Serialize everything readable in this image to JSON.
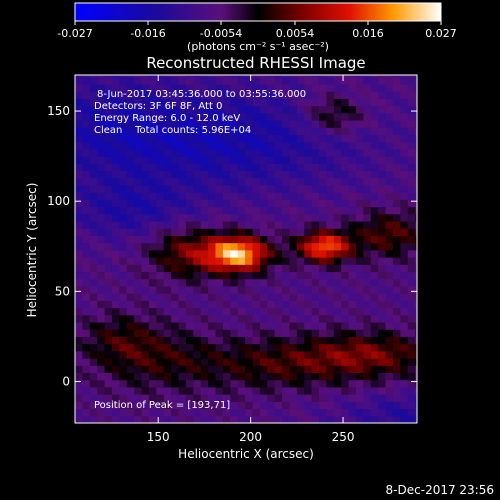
{
  "chart_data": {
    "type": "heatmap",
    "title": "Reconstructed RHESSI Image",
    "xlabel": "Heliocentric X (arcsec)",
    "ylabel": "Heliocentric Y (arcsec)",
    "xlim": [
      105,
      290
    ],
    "ylim": [
      -23,
      170
    ],
    "x_ticks": [
      150,
      200,
      250
    ],
    "y_ticks": [
      0,
      50,
      100,
      150
    ],
    "colorbar": {
      "range": [
        -0.027,
        0.027
      ],
      "ticks": [
        "-0.027",
        "-0.016",
        "-0.0054",
        "0.0054",
        "0.016",
        "0.027"
      ],
      "label": "(photons cm⁻² s⁻¹ asec⁻²)",
      "colormap": "blue-black-red-yellow-white"
    },
    "annotations": {
      "time_range": "8-Jun-2017 03:45:36.000 to 03:55:36.000",
      "detectors": "Detectors: 3F 6F 8F, Att 0",
      "energy": "Energy Range: 6.0 - 12.0 keV",
      "clean": "Clean    Total counts: 5.96E+04",
      "peak": "Position of Peak = [193,71]"
    },
    "peak": [
      193,
      71
    ],
    "sources": [
      {
        "x": 193,
        "y": 71,
        "amp": 0.027,
        "sx": 12,
        "sy": 7
      },
      {
        "x": 240,
        "y": 75,
        "amp": 0.022,
        "sx": 10,
        "sy": 6
      },
      {
        "x": 165,
        "y": 72,
        "amp": 0.011,
        "sx": 14,
        "sy": 10
      },
      {
        "x": 275,
        "y": 82,
        "amp": 0.01,
        "sx": 14,
        "sy": 9
      },
      {
        "x": 265,
        "y": 15,
        "amp": 0.011,
        "sx": 25,
        "sy": 9
      },
      {
        "x": 215,
        "y": 10,
        "amp": 0.008,
        "sx": 28,
        "sy": 10
      },
      {
        "x": 150,
        "y": 12,
        "amp": 0.007,
        "sx": 25,
        "sy": 12
      },
      {
        "x": 245,
        "y": 148,
        "amp": 0.009,
        "sx": 12,
        "sy": 8
      },
      {
        "x": 130,
        "y": 25,
        "amp": 0.006,
        "sx": 15,
        "sy": 10
      }
    ],
    "negative_regions": [
      {
        "x": 180,
        "y": 135,
        "amp": -0.009,
        "sx": 55,
        "sy": 20
      },
      {
        "x": 135,
        "y": 95,
        "amp": -0.006,
        "sx": 25,
        "sy": 12
      },
      {
        "x": 290,
        "y": -18,
        "amp": -0.006,
        "sx": 30,
        "sy": 8
      },
      {
        "x": 120,
        "y": 145,
        "amp": -0.004,
        "sx": 25,
        "sy": 20
      }
    ],
    "grid": false
  },
  "footer": {
    "date": "8-Dec-2017 23:56"
  }
}
